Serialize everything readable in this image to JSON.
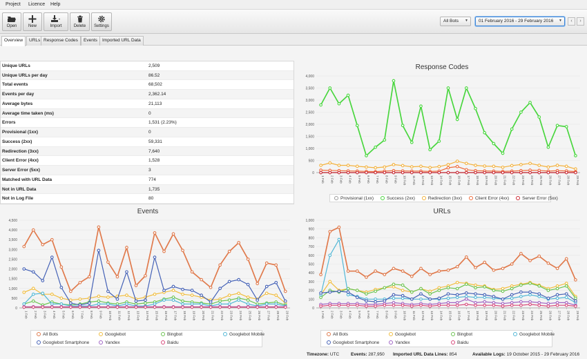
{
  "menu": {
    "items": [
      "Project",
      "Licence",
      "Help"
    ]
  },
  "toolbar": {
    "open": "Open",
    "new": "New",
    "import": "Import",
    "delete": "Delete",
    "settings": "Settings"
  },
  "filters": {
    "bots": "All Bots",
    "date_range": "01 February 2016 - 29 February 2016"
  },
  "tabs": [
    "Overview",
    "URLs",
    "Response Codes",
    "Events",
    "Imported URL Data"
  ],
  "stats": [
    {
      "k": "Unique URLs",
      "v": "2,509"
    },
    {
      "k": "Unique URLs per day",
      "v": "86.52"
    },
    {
      "k": "Total events",
      "v": "68,502"
    },
    {
      "k": "Events per day",
      "v": "2,362.14"
    },
    {
      "k": "Average bytes",
      "v": "21,113"
    },
    {
      "k": "Average time taken (ms)",
      "v": "0"
    },
    {
      "k": "Errors",
      "v": "1,531 (2.23%)"
    },
    {
      "k": "Provisional (1xx)",
      "v": "0"
    },
    {
      "k": "Success (2xx)",
      "v": "59,331"
    },
    {
      "k": "Redirection (3xx)",
      "v": "7,640"
    },
    {
      "k": "Client Error (4xx)",
      "v": "1,528"
    },
    {
      "k": "Server Error (5xx)",
      "v": "3"
    },
    {
      "k": "Matched with URL Data",
      "v": "774"
    },
    {
      "k": "Not in URL Data",
      "v": "1,735"
    },
    {
      "k": "Not in Log File",
      "v": "80"
    }
  ],
  "status": {
    "timezone_label": "Timezone:",
    "timezone": "UTC",
    "events_label": "Events:",
    "events": "287,950",
    "imported_label": "Imported URL Data Lines:",
    "imported": "854",
    "logs_label": "Available Logs:",
    "logs": "19 October 2015 - 29 February 2016"
  },
  "colors": {
    "provisional": "#999999",
    "success": "#49d63e",
    "redirection": "#f3b13b",
    "client_error": "#ee6a3a",
    "server_error": "#cc2a36",
    "all_bots": "#e07a4c",
    "googlebot": "#f1bd3e",
    "bingbot": "#6cc451",
    "googlebot_mobile": "#52b7d6",
    "googlebot_smartphone": "#4461b6",
    "yandex": "#a064c4",
    "baidu": "#d8487a"
  },
  "chart_data": [
    {
      "type": "line",
      "title": "Response Codes",
      "x": [
        "1 Feb",
        "2 Feb",
        "3 Feb",
        "4 Feb",
        "5 Feb",
        "6 Feb",
        "7 Feb",
        "8 Feb",
        "9 Feb",
        "10 Feb",
        "11 Feb",
        "12 Feb",
        "13 Feb",
        "14 Feb",
        "15 Feb",
        "16 Feb",
        "17 Feb",
        "18 Feb",
        "19 Feb",
        "20 Feb",
        "21 Feb",
        "22 Feb",
        "23 Feb",
        "24 Feb",
        "25 Feb",
        "26 Feb",
        "27 Feb",
        "28 Feb",
        "29 Feb"
      ],
      "ylim": [
        0,
        4000
      ],
      "yticks": [
        "0",
        "500",
        "1,000",
        "1,500",
        "2,000",
        "2,500",
        "3,000",
        "3,500",
        "4,000"
      ],
      "series": [
        {
          "name": "Provisional (1xx)",
          "color_key": "provisional",
          "values": [
            0,
            0,
            0,
            0,
            0,
            0,
            0,
            0,
            0,
            0,
            0,
            0,
            0,
            0,
            0,
            0,
            0,
            0,
            0,
            0,
            0,
            0,
            0,
            0,
            0,
            0,
            0,
            0,
            0
          ]
        },
        {
          "name": "Success (2xx)",
          "color_key": "success",
          "values": [
            2800,
            3500,
            2850,
            3200,
            1950,
            700,
            1050,
            1350,
            3800,
            1950,
            1250,
            2750,
            950,
            1300,
            3500,
            2200,
            3500,
            2650,
            1650,
            1200,
            800,
            1800,
            2500,
            2900,
            2300,
            1050,
            1950,
            1900,
            700
          ]
        },
        {
          "name": "Redirection (3xx)",
          "color_key": "redirection",
          "values": [
            300,
            400,
            300,
            300,
            260,
            230,
            200,
            230,
            330,
            290,
            240,
            260,
            210,
            250,
            330,
            470,
            380,
            300,
            270,
            260,
            220,
            290,
            330,
            380,
            300,
            230,
            300,
            260,
            150
          ]
        },
        {
          "name": "Client Error (4xx)",
          "color_key": "client_error",
          "values": [
            100,
            90,
            80,
            70,
            60,
            50,
            40,
            60,
            80,
            70,
            60,
            60,
            50,
            60,
            200,
            250,
            120,
            80,
            70,
            60,
            50,
            60,
            80,
            100,
            90,
            60,
            80,
            70,
            40
          ]
        },
        {
          "name": "Server Error (5xx)",
          "color_key": "server_error",
          "values": [
            0,
            0,
            0,
            0,
            0,
            0,
            0,
            0,
            0,
            0,
            0,
            0,
            0,
            0,
            0,
            0,
            0,
            0,
            0,
            0,
            0,
            0,
            0,
            0,
            0,
            0,
            0,
            0,
            0
          ]
        }
      ]
    },
    {
      "type": "line",
      "title": "Events",
      "x": [
        "1 Feb",
        "2 Feb",
        "3 Feb",
        "4 Feb",
        "5 Feb",
        "6 Feb",
        "7 Feb",
        "8 Feb",
        "9 Feb",
        "10 Feb",
        "11 Feb",
        "12 Feb",
        "13 Feb",
        "14 Feb",
        "15 Feb",
        "16 Feb",
        "17 Feb",
        "18 Feb",
        "19 Feb",
        "20 Feb",
        "21 Feb",
        "22 Feb",
        "23 Feb",
        "24 Feb",
        "25 Feb",
        "26 Feb",
        "27 Feb",
        "28 Feb",
        "29 Feb"
      ],
      "ylim": [
        0,
        4500
      ],
      "yticks": [
        "0",
        "500",
        "1,000",
        "1,500",
        "2,000",
        "2,500",
        "3,000",
        "3,500",
        "4,000",
        "4,500"
      ],
      "series": [
        {
          "name": "All Bots",
          "color_key": "all_bots",
          "values": [
            3150,
            4000,
            3250,
            3500,
            2100,
            850,
            1300,
            1600,
            4150,
            2350,
            1600,
            3100,
            1150,
            1650,
            3850,
            2900,
            3800,
            2950,
            1850,
            1450,
            1050,
            2200,
            2900,
            3350,
            2500,
            1250,
            2300,
            2200,
            850
          ]
        },
        {
          "name": "Googlebot",
          "color_key": "googlebot",
          "values": [
            800,
            1000,
            700,
            700,
            500,
            400,
            450,
            500,
            600,
            550,
            600,
            650,
            450,
            550,
            700,
            800,
            900,
            700,
            650,
            550,
            400,
            450,
            650,
            750,
            550,
            450,
            750,
            650,
            250
          ]
        },
        {
          "name": "Bingbot",
          "color_key": "bingbot",
          "values": [
            200,
            350,
            150,
            300,
            200,
            150,
            200,
            300,
            350,
            250,
            200,
            300,
            200,
            250,
            300,
            450,
            550,
            350,
            300,
            250,
            200,
            350,
            400,
            500,
            400,
            200,
            250,
            300,
            150
          ]
        },
        {
          "name": "Googlebot Mobile",
          "color_key": "googlebot_mobile",
          "values": [
            200,
            700,
            750,
            200,
            200,
            100,
            100,
            100,
            200,
            200,
            100,
            200,
            100,
            100,
            200,
            400,
            400,
            200,
            200,
            200,
            100,
            200,
            200,
            400,
            200,
            100,
            200,
            200,
            100
          ]
        },
        {
          "name": "Googlebot Smartphone",
          "color_key": "googlebot_smartphone",
          "values": [
            2000,
            1850,
            1400,
            2600,
            1050,
            250,
            150,
            250,
            2950,
            850,
            450,
            1850,
            350,
            400,
            2600,
            900,
            1100,
            950,
            900,
            650,
            300,
            1000,
            1350,
            1450,
            1200,
            400,
            1100,
            1300,
            350
          ]
        },
        {
          "name": "Yandex",
          "color_key": "yandex",
          "values": [
            60,
            60,
            60,
            60,
            60,
            60,
            60,
            60,
            60,
            60,
            60,
            60,
            60,
            60,
            60,
            60,
            60,
            60,
            60,
            60,
            60,
            60,
            60,
            60,
            60,
            60,
            60,
            60,
            60
          ]
        },
        {
          "name": "Baidu",
          "color_key": "baidu",
          "values": [
            40,
            40,
            40,
            40,
            40,
            40,
            40,
            40,
            40,
            40,
            40,
            40,
            40,
            40,
            40,
            40,
            40,
            40,
            40,
            40,
            40,
            40,
            40,
            40,
            40,
            40,
            40,
            40,
            40
          ]
        }
      ]
    },
    {
      "type": "line",
      "title": "URLs",
      "x": [
        "1 Feb",
        "2 Feb",
        "3 Feb",
        "4 Feb",
        "5 Feb",
        "6 Feb",
        "7 Feb",
        "8 Feb",
        "9 Feb",
        "10 Feb",
        "11 Feb",
        "12 Feb",
        "13 Feb",
        "14 Feb",
        "15 Feb",
        "16 Feb",
        "17 Feb",
        "18 Feb",
        "19 Feb",
        "20 Feb",
        "21 Feb",
        "22 Feb",
        "23 Feb",
        "24 Feb",
        "25 Feb",
        "26 Feb",
        "27 Feb",
        "28 Feb",
        "29 Feb"
      ],
      "ylim": [
        0,
        1000
      ],
      "yticks": [
        "0",
        "100",
        "200",
        "300",
        "400",
        "500",
        "600",
        "700",
        "800",
        "900",
        "1,000"
      ],
      "series": [
        {
          "name": "All Bots",
          "color_key": "all_bots",
          "values": [
            380,
            870,
            920,
            420,
            420,
            350,
            420,
            380,
            450,
            420,
            360,
            450,
            380,
            420,
            430,
            470,
            580,
            460,
            520,
            430,
            450,
            500,
            620,
            540,
            590,
            510,
            450,
            560,
            320
          ]
        },
        {
          "name": "Googlebot",
          "color_key": "googlebot",
          "values": [
            150,
            300,
            200,
            220,
            200,
            180,
            210,
            230,
            240,
            200,
            180,
            220,
            190,
            230,
            250,
            290,
            280,
            260,
            250,
            210,
            220,
            250,
            270,
            290,
            260,
            220,
            250,
            280,
            130
          ]
        },
        {
          "name": "Bingbot",
          "color_key": "bingbot",
          "values": [
            120,
            200,
            180,
            220,
            200,
            160,
            190,
            230,
            270,
            260,
            180,
            220,
            160,
            200,
            230,
            220,
            270,
            230,
            240,
            200,
            190,
            220,
            260,
            280,
            250,
            200,
            220,
            250,
            110
          ]
        },
        {
          "name": "Googlebot Mobile",
          "color_key": "googlebot_mobile",
          "values": [
            150,
            600,
            780,
            150,
            130,
            100,
            100,
            100,
            110,
            110,
            100,
            100,
            100,
            100,
            110,
            120,
            130,
            120,
            120,
            110,
            100,
            110,
            130,
            150,
            130,
            100,
            110,
            120,
            60
          ]
        },
        {
          "name": "Googlebot Smartphone",
          "color_key": "googlebot_smartphone",
          "values": [
            170,
            180,
            190,
            180,
            120,
            80,
            70,
            80,
            150,
            140,
            100,
            160,
            100,
            110,
            160,
            150,
            170,
            160,
            150,
            130,
            100,
            150,
            180,
            180,
            160,
            110,
            150,
            160,
            80
          ]
        },
        {
          "name": "Yandex",
          "color_key": "yandex",
          "values": [
            40,
            50,
            50,
            50,
            50,
            40,
            40,
            50,
            60,
            50,
            40,
            50,
            40,
            50,
            60,
            60,
            100,
            60,
            70,
            60,
            50,
            60,
            70,
            70,
            60,
            50,
            60,
            60,
            30
          ]
        },
        {
          "name": "Baidu",
          "color_key": "baidu",
          "values": [
            20,
            30,
            30,
            30,
            30,
            20,
            20,
            30,
            30,
            30,
            20,
            30,
            20,
            30,
            30,
            30,
            40,
            30,
            30,
            30,
            20,
            30,
            30,
            40,
            30,
            20,
            30,
            30,
            20
          ]
        }
      ]
    }
  ]
}
